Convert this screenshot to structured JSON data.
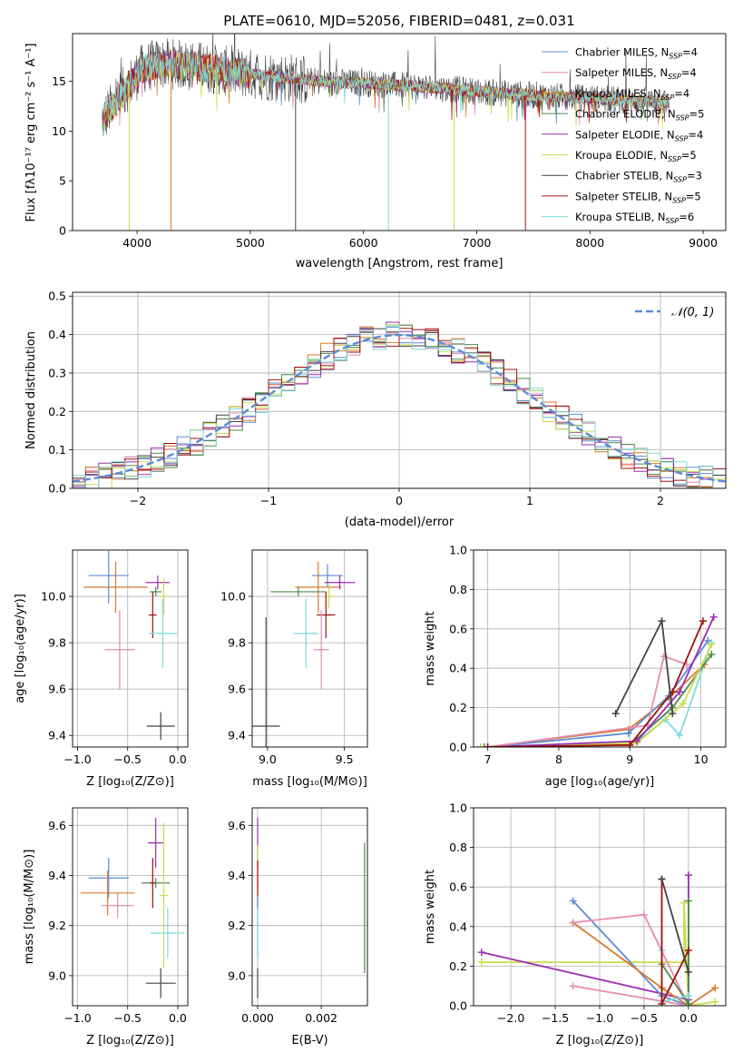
{
  "colors": {
    "chabrier_miles": "#5b8bd6",
    "salpeter_miles": "#e58cb0",
    "kroupa_miles": "#d97a2b",
    "chabrier_elodie": "#4e8a4a",
    "salpeter_elodie": "#9b2fb2",
    "kroupa_elodie": "#c9dd4d",
    "chabrier_stelib": "#444444",
    "salpeter_stelib": "#a01010",
    "kroupa_stelib": "#7fdada"
  },
  "chart_data": [
    {
      "id": "spectrum",
      "type": "line",
      "title": "PLATE=0610, MJD=52056, FIBERID=0481, z=0.031",
      "xlabel": "wavelength [Angstrom, rest frame]",
      "ylabel": "Flux [fλ10⁻¹⁷ erg cm⁻² s⁻¹ A⁻¹]",
      "xlim": [
        3430,
        9200
      ],
      "ylim": [
        0,
        19.8
      ],
      "xticks": [
        4000,
        5000,
        6000,
        7000,
        8000,
        9000
      ],
      "yticks": [
        0,
        5,
        10,
        15
      ],
      "grid": false,
      "legend_position": "top-right",
      "legend": [
        {
          "label": "Chabrier MILES, N",
          "sub": "SSP",
          "suffix": "=4",
          "color_key": "chabrier_miles"
        },
        {
          "label": "Salpeter MILES, N",
          "sub": "SSP",
          "suffix": "=4",
          "color_key": "salpeter_miles"
        },
        {
          "label": "Kroupa MILES, N",
          "sub": "SSP",
          "suffix": "=4",
          "color_key": "kroupa_miles"
        },
        {
          "label": "Chabrier ELODIE, N",
          "sub": "SSP",
          "suffix": "=5",
          "color_key": "chabrier_elodie"
        },
        {
          "label": "Salpeter ELODIE, N",
          "sub": "SSP",
          "suffix": "=4",
          "color_key": "salpeter_elodie"
        },
        {
          "label": "Kroupa ELODIE, N",
          "sub": "SSP",
          "suffix": "=5",
          "color_key": "kroupa_elodie"
        },
        {
          "label": "Chabrier STELIB, N",
          "sub": "SSP",
          "suffix": "=3",
          "color_key": "chabrier_stelib"
        },
        {
          "label": "Salpeter STELIB, N",
          "sub": "SSP",
          "suffix": "=5",
          "color_key": "salpeter_stelib"
        },
        {
          "label": "Kroupa STELIB, N",
          "sub": "SSP",
          "suffix": "=6",
          "color_key": "kroupa_stelib"
        }
      ],
      "continuum": [
        [
          3690,
          11.0
        ],
        [
          3750,
          12.0
        ],
        [
          3850,
          13.5
        ],
        [
          3950,
          15.0
        ],
        [
          4050,
          16.3
        ],
        [
          4200,
          16.8
        ],
        [
          4500,
          16.6
        ],
        [
          4800,
          16.0
        ],
        [
          5200,
          15.5
        ],
        [
          5600,
          15.0
        ],
        [
          6000,
          14.8
        ],
        [
          6300,
          14.6
        ],
        [
          6600,
          14.4
        ],
        [
          7000,
          14.0
        ],
        [
          7500,
          13.6
        ],
        [
          8000,
          13.3
        ],
        [
          8500,
          13.0
        ],
        [
          8700,
          12.9
        ]
      ],
      "wave_range": [
        3690,
        8700
      ],
      "drops": [
        {
          "x": 3930,
          "y": 0,
          "color_key": "kroupa_elodie"
        },
        {
          "x": 4300,
          "y": 0,
          "color_key": "kroupa_miles"
        },
        {
          "x": 6220,
          "y": 0,
          "color_key": "kroupa_stelib"
        },
        {
          "x": 6800,
          "y": 0,
          "color_key": "kroupa_elodie"
        },
        {
          "x": 7430,
          "y": 0,
          "color_key": "salpeter_stelib"
        },
        {
          "x": 5400,
          "y": 0,
          "color_key": "chabrier_stelib"
        }
      ]
    },
    {
      "id": "residuals",
      "type": "histogram",
      "xlabel": "(data-model)/error",
      "ylabel": "Normed distribution",
      "xlim": [
        -2.5,
        2.5
      ],
      "ylim": [
        0,
        0.51
      ],
      "xticks": [
        -2,
        -1,
        0,
        1,
        2
      ],
      "yticks": [
        0.0,
        0.1,
        0.2,
        0.3,
        0.4,
        0.5
      ],
      "grid": true,
      "legend_position": "top-right",
      "gauss_label": "𝒩(0, 1)",
      "gauss_color": "#5b8bd6",
      "bin_width": 0.1,
      "bin_start": -2.5
    },
    {
      "id": "age_vs_Z",
      "type": "scatter",
      "xlabel": "Z [log₁₀(Z/Z⊙)]",
      "ylabel": "age  [log₁₀(age/yr)]",
      "xlim": [
        -1.05,
        0.1
      ],
      "ylim": [
        9.35,
        10.2
      ],
      "xticks": [
        -1.0,
        -0.5,
        0.0
      ],
      "yticks": [
        9.4,
        9.6,
        9.8,
        10.0
      ],
      "grid": true,
      "points": [
        {
          "color_key": "chabrier_miles",
          "x": -0.69,
          "y": 10.09,
          "xerr": 0.2,
          "yerr": 0.12
        },
        {
          "color_key": "kroupa_miles",
          "x": -0.62,
          "y": 10.04,
          "xerr": 0.32,
          "yerr": 0.11
        },
        {
          "color_key": "salpeter_miles",
          "x": -0.58,
          "y": 9.77,
          "xerr": 0.15,
          "yerr": 0.17
        },
        {
          "color_key": "salpeter_elodie",
          "x": -0.2,
          "y": 10.06,
          "xerr": 0.12,
          "yerr": 0.03
        },
        {
          "color_key": "chabrier_elodie",
          "x": -0.22,
          "y": 10.02,
          "xerr": 0.06,
          "yerr": 0.02
        },
        {
          "color_key": "salpeter_stelib",
          "x": -0.25,
          "y": 9.92,
          "xerr": 0.04,
          "yerr": 0.1
        },
        {
          "color_key": "kroupa_elodie",
          "x": -0.14,
          "y": 10.0,
          "xerr": 0.04,
          "yerr": 0.08
        },
        {
          "color_key": "kroupa_stelib",
          "x": -0.15,
          "y": 9.84,
          "xerr": 0.14,
          "yerr": 0.15
        },
        {
          "color_key": "chabrier_stelib",
          "x": -0.17,
          "y": 9.44,
          "xerr": 0.14,
          "yerr": 0.06
        }
      ]
    },
    {
      "id": "age_vs_mass",
      "type": "scatter",
      "xlabel": "mass [log₁₀(M/M⊙)]",
      "ylabel": "",
      "xlim": [
        8.9,
        9.65
      ],
      "ylim": [
        9.35,
        10.2
      ],
      "xticks": [
        9.0,
        9.5
      ],
      "yticks": [
        9.4,
        9.6,
        9.8,
        10.0
      ],
      "grid": true,
      "points": [
        {
          "color_key": "chabrier_miles",
          "x": 9.39,
          "y": 10.09,
          "xerr": 0.1,
          "yerr": 0.05
        },
        {
          "color_key": "kroupa_miles",
          "x": 9.33,
          "y": 10.04,
          "xerr": 0.15,
          "yerr": 0.11
        },
        {
          "color_key": "salpeter_elodie",
          "x": 9.47,
          "y": 10.06,
          "xerr": 0.1,
          "yerr": 0.03
        },
        {
          "color_key": "chabrier_elodie",
          "x": 9.2,
          "y": 10.02,
          "xerr": 0.18,
          "yerr": 0.02
        },
        {
          "color_key": "kroupa_elodie",
          "x": 9.4,
          "y": 10.0,
          "xerr": 0.03,
          "yerr": 0.05
        },
        {
          "color_key": "salpeter_stelib",
          "x": 9.38,
          "y": 9.92,
          "xerr": 0.06,
          "yerr": 0.1
        },
        {
          "color_key": "kroupa_stelib",
          "x": 9.25,
          "y": 9.84,
          "xerr": 0.08,
          "yerr": 0.15
        },
        {
          "color_key": "salpeter_miles",
          "x": 9.35,
          "y": 9.77,
          "xerr": 0.05,
          "yerr": 0.17
        },
        {
          "color_key": "chabrier_stelib",
          "x": 8.99,
          "y": 9.44,
          "xerr": 0.09,
          "yerr": 0.47
        }
      ]
    },
    {
      "id": "mass_weight_vs_age",
      "type": "line",
      "xlabel": "age  [log₁₀(age/yr)]",
      "ylabel": "mass weight",
      "xlim": [
        6.8,
        10.35
      ],
      "ylim": [
        0,
        1.0
      ],
      "xticks": [
        7,
        8,
        9,
        10
      ],
      "yticks": [
        0.0,
        0.2,
        0.4,
        0.6,
        0.8,
        1.0
      ],
      "grid": true,
      "series": [
        {
          "color_key": "kroupa_miles",
          "points": [
            [
              7.0,
              0.0
            ],
            [
              8.98,
              0.09
            ],
            [
              9.55,
              0.25
            ],
            [
              10.05,
              0.42
            ]
          ]
        },
        {
          "color_key": "chabrier_miles",
          "points": [
            [
              7.0,
              0.0
            ],
            [
              8.98,
              0.07
            ],
            [
              9.55,
              0.26
            ],
            [
              10.1,
              0.54
            ]
          ]
        },
        {
          "color_key": "salpeter_miles",
          "points": [
            [
              7.0,
              0.0
            ],
            [
              9.25,
              0.11
            ],
            [
              9.48,
              0.46
            ],
            [
              9.8,
              0.42
            ]
          ]
        },
        {
          "color_key": "kroupa_stelib",
          "points": [
            [
              7.0,
              0.0
            ],
            [
              9.1,
              0.03
            ],
            [
              9.5,
              0.14
            ],
            [
              9.7,
              0.06
            ],
            [
              10.15,
              0.53
            ]
          ]
        },
        {
          "color_key": "chabrier_elodie",
          "points": [
            [
              6.95,
              0.0
            ],
            [
              9.0,
              0.01
            ],
            [
              9.6,
              0.2
            ],
            [
              10.15,
              0.47
            ]
          ]
        },
        {
          "color_key": "kroupa_elodie",
          "points": [
            [
              6.9,
              0.0
            ],
            [
              9.1,
              0.02
            ],
            [
              9.75,
              0.22
            ],
            [
              10.15,
              0.52
            ]
          ]
        },
        {
          "color_key": "salpeter_elodie",
          "points": [
            [
              7.0,
              0.0
            ],
            [
              9.1,
              0.03
            ],
            [
              9.7,
              0.28
            ],
            [
              10.18,
              0.66
            ]
          ]
        },
        {
          "color_key": "salpeter_stelib",
          "points": [
            [
              7.0,
              0.0
            ],
            [
              9.0,
              0.01
            ],
            [
              9.6,
              0.28
            ],
            [
              10.03,
              0.64
            ]
          ]
        },
        {
          "color_key": "chabrier_stelib",
          "points": [
            [
              8.8,
              0.17
            ],
            [
              9.45,
              0.64
            ],
            [
              9.6,
              0.17
            ]
          ]
        }
      ]
    },
    {
      "id": "mass_vs_Z",
      "type": "scatter",
      "xlabel": "Z [log₁₀(Z/Z⊙)]",
      "ylabel": "mass [log₁₀(M/M⊙)]",
      "xlim": [
        -1.05,
        0.1
      ],
      "ylim": [
        8.88,
        9.67
      ],
      "xticks": [
        -1.0,
        -0.5,
        0.0
      ],
      "yticks": [
        9.0,
        9.2,
        9.4,
        9.6
      ],
      "grid": true,
      "points": [
        {
          "color_key": "chabrier_miles",
          "x": -0.69,
          "y": 9.39,
          "xerr": 0.2,
          "yerr": 0.08
        },
        {
          "color_key": "kroupa_miles",
          "x": -0.7,
          "y": 9.33,
          "xerr": 0.27,
          "yerr": 0.09
        },
        {
          "color_key": "salpeter_miles",
          "x": -0.6,
          "y": 9.28,
          "xerr": 0.16,
          "yerr": 0.05
        },
        {
          "color_key": "salpeter_elodie",
          "x": -0.22,
          "y": 9.53,
          "xerr": 0.08,
          "yerr": 0.1
        },
        {
          "color_key": "chabrier_elodie",
          "x": -0.22,
          "y": 9.37,
          "xerr": 0.14,
          "yerr": 0.02
        },
        {
          "color_key": "salpeter_stelib",
          "x": -0.25,
          "y": 9.37,
          "xerr": 0.03,
          "yerr": 0.1
        },
        {
          "color_key": "kroupa_elodie",
          "x": -0.14,
          "y": 9.32,
          "xerr": 0.04,
          "yerr": 0.29
        },
        {
          "color_key": "kroupa_stelib",
          "x": -0.1,
          "y": 9.17,
          "xerr": 0.17,
          "yerr": 0.1
        },
        {
          "color_key": "chabrier_stelib",
          "x": -0.17,
          "y": 8.97,
          "xerr": 0.15,
          "yerr": 0.06
        }
      ]
    },
    {
      "id": "mass_vs_ebv",
      "type": "scatter",
      "xlabel": "E(B-V)",
      "ylabel": "",
      "xlim": [
        -0.00017,
        0.00345
      ],
      "ylim": [
        8.88,
        9.67
      ],
      "xticks": [
        0.0,
        0.002
      ],
      "xtick_labels": [
        "0.000",
        "0.002"
      ],
      "yticks": [
        9.0,
        9.2,
        9.4,
        9.6
      ],
      "grid": true,
      "points": [
        {
          "color_key": "salpeter_elodie",
          "x": 0.0,
          "y": 9.53,
          "yerr": 0.1
        },
        {
          "color_key": "kroupa_elodie",
          "x": 0.0,
          "y": 9.42,
          "yerr": 0.1
        },
        {
          "color_key": "salpeter_stelib",
          "x": 0.0,
          "y": 9.37,
          "yerr": 0.09
        },
        {
          "color_key": "chabrier_miles",
          "x": 0.0,
          "y": 9.2,
          "yerr": 0.12
        },
        {
          "color_key": "kroupa_stelib",
          "x": 0.0,
          "y": 9.17,
          "yerr": 0.1
        },
        {
          "color_key": "chabrier_stelib",
          "x": 0.0,
          "y": 8.97,
          "yerr": 0.06
        },
        {
          "color_key": "chabrier_elodie",
          "x": 0.00336,
          "y": 9.27,
          "yerr": 0.26
        }
      ]
    },
    {
      "id": "mass_weight_vs_Z",
      "type": "line",
      "xlabel": "Z [log₁₀(Z/Z⊙)]",
      "ylabel": "mass weight",
      "xlim": [
        -2.42,
        0.42
      ],
      "ylim": [
        0,
        1.0
      ],
      "xticks": [
        -2.0,
        -1.5,
        -1.0,
        -0.5,
        0.0
      ],
      "yticks": [
        0.0,
        0.2,
        0.4,
        0.6,
        0.8,
        1.0
      ],
      "grid": true,
      "series": [
        {
          "color_key": "kroupa_elodie",
          "points": [
            [
              -2.33,
              0.22
            ],
            [
              -0.05,
              0.22
            ],
            [
              -0.05,
              0.52
            ],
            [
              0.0,
              0.0
            ],
            [
              0.3,
              0.02
            ]
          ]
        },
        {
          "color_key": "salpeter_elodie",
          "points": [
            [
              -2.33,
              0.27
            ],
            [
              0.0,
              0.03
            ],
            [
              0.0,
              0.66
            ]
          ]
        },
        {
          "color_key": "chabrier_miles",
          "points": [
            [
              -1.3,
              0.53
            ],
            [
              -0.3,
              0.05
            ],
            [
              0.0,
              0.0
            ]
          ]
        },
        {
          "color_key": "kroupa_miles",
          "points": [
            [
              -1.3,
              0.42
            ],
            [
              -0.3,
              0.09
            ],
            [
              0.0,
              0.0
            ],
            [
              0.3,
              0.09
            ]
          ]
        },
        {
          "color_key": "salpeter_miles",
          "points": [
            [
              -1.3,
              0.42
            ],
            [
              -0.5,
              0.46
            ],
            [
              0.0,
              0.0
            ],
            [
              -1.3,
              0.1
            ]
          ]
        },
        {
          "color_key": "chabrier_elodie",
          "points": [
            [
              -0.3,
              0.21
            ],
            [
              0.0,
              0.01
            ],
            [
              0.0,
              0.53
            ]
          ]
        },
        {
          "color_key": "kroupa_stelib",
          "points": [
            [
              -0.3,
              0.28
            ],
            [
              -0.3,
              0.02
            ],
            [
              0.0,
              0.05
            ]
          ]
        },
        {
          "color_key": "salpeter_stelib",
          "points": [
            [
              -0.3,
              0.64
            ],
            [
              -0.3,
              0.01
            ],
            [
              0.0,
              0.28
            ]
          ]
        },
        {
          "color_key": "chabrier_stelib",
          "points": [
            [
              -0.3,
              0.64
            ],
            [
              0.0,
              0.17
            ]
          ]
        }
      ]
    }
  ]
}
